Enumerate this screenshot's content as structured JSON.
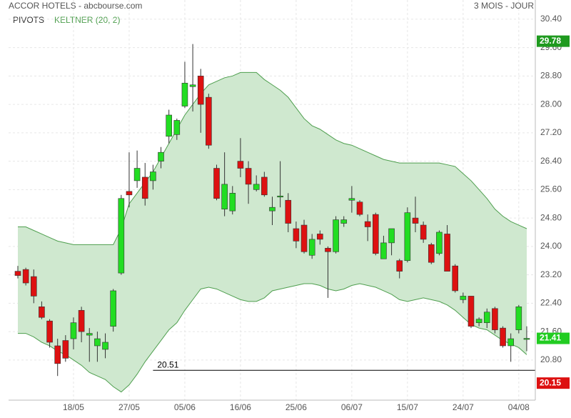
{
  "chart_data": {
    "type": "candlestick",
    "title": "ACCOR HOTELS - abcbourse.com",
    "subtitle": "3 MOIS - JOUR",
    "categories": [
      null,
      null,
      null,
      null,
      null,
      null,
      null,
      "18/05",
      null,
      null,
      null,
      null,
      null,
      null,
      "27/05",
      null,
      null,
      null,
      null,
      null,
      null,
      "05/06",
      null,
      null,
      null,
      null,
      null,
      null,
      "16/06",
      null,
      null,
      null,
      null,
      null,
      null,
      "25/06",
      null,
      null,
      null,
      null,
      null,
      null,
      "06/07",
      null,
      null,
      null,
      null,
      null,
      null,
      "15/07",
      null,
      null,
      null,
      null,
      null,
      null,
      "24/07",
      null,
      null,
      null,
      null,
      null,
      null,
      "04/08",
      null
    ],
    "open": [
      23.3,
      23.35,
      23.15,
      22.3,
      21.9,
      21.2,
      21.35,
      21.4,
      22.2,
      21.5,
      21.2,
      21.1,
      21.75,
      23.25,
      25.55,
      25.85,
      25.95,
      25.85,
      26.4,
      27.1,
      27.15,
      27.95,
      28.5,
      28.8,
      28.2,
      26.2,
      25.05,
      25.0,
      26.4,
      26.2,
      25.6,
      25.95,
      25.0,
      25.4,
      25.3,
      24.5,
      24.6,
      23.75,
      24.35,
      23.95,
      23.85,
      24.65,
      25.3,
      25.25,
      24.7,
      24.9,
      23.65,
      24.1,
      23.6,
      23.6,
      24.8,
      24.6,
      24.05,
      23.8,
      24.35,
      23.45,
      22.5,
      22.6,
      21.85,
      21.85,
      22.25,
      21.7,
      21.2,
      21.65,
      21.4
    ],
    "high": [
      23.45,
      23.4,
      23.35,
      22.45,
      21.95,
      21.4,
      21.5,
      22.0,
      22.3,
      21.7,
      21.6,
      21.55,
      22.8,
      25.45,
      26.65,
      26.7,
      26.35,
      26.3,
      26.8,
      27.85,
      27.6,
      29.2,
      29.7,
      29.0,
      28.3,
      26.3,
      26.65,
      25.7,
      27.05,
      26.4,
      26.0,
      26.1,
      25.4,
      26.4,
      25.5,
      24.7,
      24.75,
      24.35,
      24.45,
      24.0,
      24.85,
      24.85,
      25.7,
      25.3,
      24.9,
      24.95,
      24.3,
      24.5,
      23.65,
      25.1,
      25.4,
      24.7,
      24.1,
      24.45,
      24.6,
      23.5,
      22.7,
      22.6,
      22.0,
      22.25,
      22.3,
      21.75,
      21.55,
      22.35,
      21.75
    ],
    "low": [
      23.1,
      22.9,
      22.4,
      21.95,
      21.15,
      20.35,
      20.75,
      21.1,
      21.3,
      20.75,
      20.75,
      20.85,
      21.6,
      23.2,
      25.1,
      25.65,
      25.15,
      25.6,
      26.2,
      26.9,
      27.0,
      27.9,
      27.8,
      27.2,
      26.75,
      25.3,
      24.85,
      24.9,
      25.95,
      25.2,
      25.55,
      25.4,
      24.6,
      25.1,
      24.4,
      23.95,
      23.8,
      23.65,
      24.05,
      22.55,
      23.8,
      24.55,
      24.95,
      24.85,
      24.15,
      23.75,
      23.65,
      23.75,
      23.1,
      23.55,
      24.4,
      24.1,
      23.5,
      23.75,
      23.3,
      22.7,
      22.4,
      21.7,
      21.75,
      21.7,
      21.55,
      21.15,
      20.75,
      21.55,
      21.05
    ],
    "close": [
      23.18,
      22.97,
      22.6,
      22.0,
      21.3,
      20.7,
      20.85,
      21.85,
      21.6,
      21.55,
      21.4,
      21.3,
      22.75,
      25.35,
      25.45,
      26.2,
      25.35,
      26.1,
      26.65,
      27.7,
      27.55,
      28.6,
      28.55,
      28.0,
      26.85,
      25.35,
      25.75,
      25.5,
      26.2,
      25.75,
      25.75,
      25.45,
      25.1,
      25.42,
      24.65,
      24.15,
      23.85,
      24.2,
      24.2,
      23.85,
      24.75,
      24.75,
      25.35,
      24.9,
      24.55,
      23.8,
      24.1,
      24.5,
      23.3,
      24.95,
      24.65,
      24.2,
      23.55,
      24.4,
      23.3,
      22.75,
      22.6,
      21.75,
      21.95,
      22.15,
      21.65,
      21.2,
      21.4,
      22.3,
      21.41
    ],
    "up_color": "#22dd22",
    "down_color": "#dd1111",
    "keltner": {
      "name": "KELTNER (20, 2)",
      "color": "#4f9f4f",
      "fill": "#cfe8cf",
      "upper": [
        24.55,
        24.55,
        24.45,
        24.35,
        24.25,
        24.15,
        24.1,
        24.05,
        24.05,
        24.05,
        24.05,
        24.05,
        24.05,
        24.5,
        25.2,
        25.5,
        25.8,
        26.1,
        26.5,
        26.9,
        27.3,
        27.7,
        28.0,
        28.3,
        28.55,
        28.65,
        28.75,
        28.8,
        28.9,
        28.9,
        28.9,
        28.7,
        28.55,
        28.4,
        28.2,
        27.9,
        27.6,
        27.4,
        27.3,
        27.15,
        27.0,
        26.9,
        26.85,
        26.75,
        26.65,
        26.55,
        26.45,
        26.4,
        26.35,
        26.35,
        26.35,
        26.35,
        26.35,
        26.35,
        26.3,
        26.25,
        26.05,
        25.85,
        25.6,
        25.35,
        25.05,
        24.85,
        24.7,
        24.6,
        24.5
      ],
      "lower": [
        21.55,
        21.55,
        21.45,
        21.3,
        21.2,
        21.05,
        20.95,
        20.8,
        20.65,
        20.45,
        20.35,
        20.25,
        20.05,
        19.9,
        20.1,
        20.4,
        20.75,
        21.05,
        21.35,
        21.65,
        21.85,
        22.2,
        22.5,
        22.8,
        22.85,
        22.8,
        22.7,
        22.6,
        22.5,
        22.45,
        22.45,
        22.55,
        22.75,
        22.8,
        22.85,
        22.9,
        22.95,
        22.95,
        22.9,
        22.8,
        22.75,
        22.8,
        22.9,
        22.95,
        22.9,
        22.85,
        22.75,
        22.65,
        22.5,
        22.45,
        22.5,
        22.55,
        22.5,
        22.45,
        22.35,
        22.2,
        22.0,
        21.8,
        21.7,
        21.65,
        21.5,
        21.35,
        21.25,
        21.15,
        20.95
      ]
    },
    "pivots": {
      "name": "PIVOTS",
      "value": 20.51,
      "color": "#000000"
    },
    "price_labels": [
      {
        "value": 29.78,
        "color": "#1f9a1f"
      },
      {
        "value": 21.41,
        "color": "#22cc22"
      },
      {
        "value": 20.15,
        "color": "#dd1111"
      }
    ],
    "ylim": [
      19.67,
      30.94
    ],
    "yticks": [
      {
        "value": 20.8,
        "label": "20.80"
      },
      {
        "value": 21.6,
        "label": "21.60"
      },
      {
        "value": 22.4,
        "label": "22.40"
      },
      {
        "value": 23.2,
        "label": "23.20"
      },
      {
        "value": 24,
        "label": "24.00"
      },
      {
        "value": 24.8,
        "label": "24.80"
      },
      {
        "value": 25.6,
        "label": "25.60"
      },
      {
        "value": 26.4,
        "label": "26.40"
      },
      {
        "value": 27.2,
        "label": "27.20"
      },
      {
        "value": 28,
        "label": "28.00"
      },
      {
        "value": 28.8,
        "label": "28.80"
      },
      {
        "value": 29.6,
        "label": "29.60"
      },
      {
        "value": 30.4,
        "label": "30.40"
      }
    ],
    "grid": true
  }
}
